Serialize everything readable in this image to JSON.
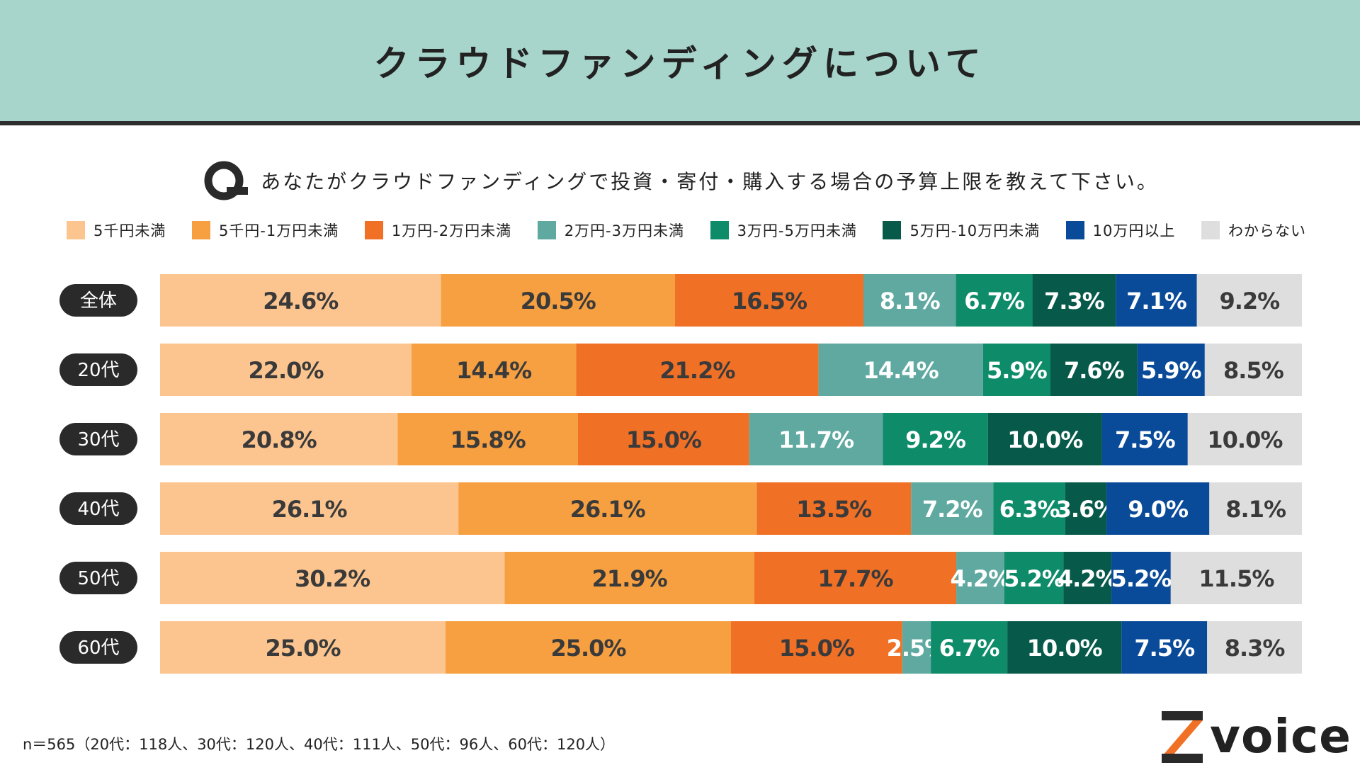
{
  "header": {
    "title": "クラウドファンディングについて"
  },
  "question": {
    "mark": "Q",
    "text": "あなたがクラウドファンディングで投資・寄付・購入する場合の予算上限を教えて下さい。"
  },
  "chart_data": {
    "type": "bar",
    "orientation": "horizontal",
    "stacked": true,
    "percent": true,
    "categories": [
      "全体",
      "20代",
      "30代",
      "40代",
      "50代",
      "60代"
    ],
    "series": [
      {
        "name": "5千円未満",
        "color": "#fcc590",
        "label_color": "#3a3a3a",
        "values": [
          24.6,
          22.0,
          20.8,
          26.1,
          30.2,
          25.0
        ]
      },
      {
        "name": "5千円-1万円未満",
        "color": "#f6a041",
        "label_color": "#3a3a3a",
        "values": [
          20.5,
          14.4,
          15.8,
          26.1,
          21.9,
          25.0
        ]
      },
      {
        "name": "1万円-2万円未満",
        "color": "#f07026",
        "label_color": "#3a3a3a",
        "values": [
          16.5,
          21.2,
          15.0,
          13.5,
          17.7,
          15.0
        ]
      },
      {
        "name": "2万円-3万円未満",
        "color": "#5fa9a0",
        "label_color": "#ffffff",
        "values": [
          8.1,
          14.4,
          11.7,
          7.2,
          4.2,
          2.5
        ]
      },
      {
        "name": "3万円-5万円未満",
        "color": "#0e8c6a",
        "label_color": "#ffffff",
        "values": [
          6.7,
          5.9,
          9.2,
          6.3,
          5.2,
          6.7
        ]
      },
      {
        "name": "5万円-10万円未満",
        "color": "#07594a",
        "label_color": "#ffffff",
        "values": [
          7.3,
          7.6,
          10.0,
          3.6,
          4.2,
          10.0
        ]
      },
      {
        "name": "10万円以上",
        "color": "#0a4b99",
        "label_color": "#ffffff",
        "values": [
          7.1,
          5.9,
          7.5,
          9.0,
          5.2,
          7.5
        ]
      },
      {
        "name": "わからない",
        "color": "#dedede",
        "label_color": "#3a3a3a",
        "values": [
          9.2,
          8.5,
          10.0,
          8.1,
          11.5,
          8.3
        ]
      }
    ],
    "legend": "top",
    "grid": false
  },
  "footnote": "n＝565（20代：118人、30代：120人、40代：111人、50代：96人、60代：120人）",
  "logo": {
    "text": "voice",
    "mark": "Z"
  }
}
